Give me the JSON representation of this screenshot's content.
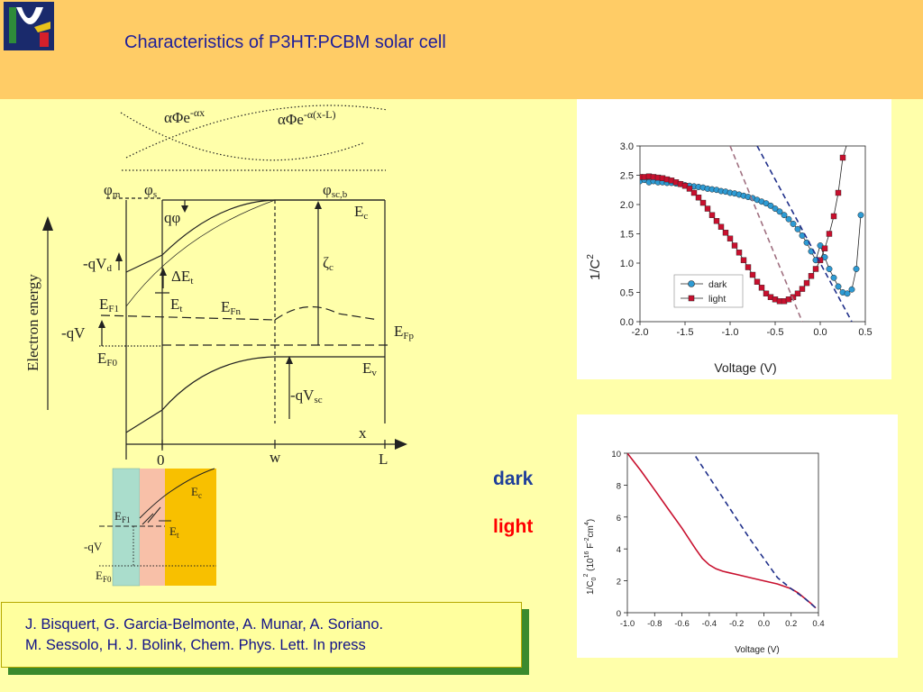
{
  "slide": {
    "title": "Characteristics of P3HT:PCBM solar cell",
    "colors": {
      "header_bg": "#FFCC66",
      "body_bg": "#FFFFAA",
      "title": "#1F1F9A"
    }
  },
  "band_diagram": {
    "axis_label": "Electron energy",
    "x_axis_label": "x",
    "generation_left": "αΦe",
    "generation_left_sup": "-αx",
    "generation_right": "αΦe",
    "generation_right_sup": "-α(x-L)",
    "phi_m": "φ",
    "phi_m_sub": "m",
    "phi_s": "φ",
    "phi_s_sub": "s",
    "phi_scb": "φ",
    "phi_scb_sub": "sc,b",
    "q_phi": "qφ",
    "Ec": "E",
    "Ec_sub": "c",
    "qVd": "-qV",
    "qVd_sub": "d",
    "dEt": "ΔE",
    "dEt_sub": "t",
    "zeta": "ζ",
    "zeta_sub": "c",
    "EF1": "E",
    "EF1_sub": "F1",
    "Et": "E",
    "Et_sub": "t",
    "EFn": "E",
    "EFn_sub": "Fn",
    "qV": "-qV",
    "EFp": "E",
    "EFp_sub": "Fp",
    "EF0": "E",
    "EF0_sub": "F0",
    "Ev": "E",
    "Ev_sub": "v",
    "qVsc": "-qV",
    "qVsc_sub": "sc",
    "tick_0": "0",
    "tick_w": "w",
    "tick_L": "L"
  },
  "inset_diagram": {
    "Ec": "E",
    "Ec_sub": "c",
    "EF1": "E",
    "EF1_sub": "F1",
    "Et": "E",
    "Et_sub": "t",
    "qV": "-qV",
    "EF0": "E",
    "EF0_sub": "F0",
    "layer_colors": [
      "#AADDCC",
      "#F8C0A8",
      "#F8C000"
    ]
  },
  "legend_labels": {
    "dark": "dark",
    "light": "light",
    "dark_color": "#1F3F9A",
    "light_color": "#FF0000"
  },
  "reference": {
    "line1": "J. Bisquert, G. Garcia-Belmonte, A. Munar, A. Soriano.",
    "line2": "M. Sessolo, H. J. Bolink, Chem. Phys. Lett. In press"
  },
  "chart_data": [
    {
      "type": "scatter",
      "title": "",
      "xlabel": "Voltage (V)",
      "ylabel": "1/C",
      "ylabel_sup": "2",
      "xlim": [
        -2.0,
        0.5
      ],
      "ylim": [
        0.0,
        3.0
      ],
      "xticks": [
        "-2.0",
        "-1.5",
        "-1.0",
        "-0.5",
        "0.0",
        "0.5"
      ],
      "yticks": [
        "0.0",
        "0.5",
        "1.0",
        "1.5",
        "2.0",
        "2.5",
        "3.0"
      ],
      "legend": "lower-center",
      "series": [
        {
          "name": "dark",
          "color": "#2E9BD4",
          "marker": "circle",
          "x": [
            -2.0,
            -1.95,
            -1.9,
            -1.85,
            -1.8,
            -1.75,
            -1.7,
            -1.65,
            -1.6,
            -1.55,
            -1.5,
            -1.45,
            -1.4,
            -1.35,
            -1.3,
            -1.25,
            -1.2,
            -1.15,
            -1.1,
            -1.05,
            -1.0,
            -0.95,
            -0.9,
            -0.85,
            -0.8,
            -0.75,
            -0.7,
            -0.65,
            -0.6,
            -0.55,
            -0.5,
            -0.45,
            -0.4,
            -0.35,
            -0.3,
            -0.25,
            -0.2,
            -0.15,
            -0.1,
            -0.05,
            0.0,
            0.05,
            0.1,
            0.15,
            0.2,
            0.25,
            0.3,
            0.35,
            0.4,
            0.45
          ],
          "y": [
            2.4,
            2.42,
            2.38,
            2.4,
            2.38,
            2.38,
            2.37,
            2.37,
            2.36,
            2.35,
            2.33,
            2.32,
            2.31,
            2.3,
            2.29,
            2.27,
            2.26,
            2.25,
            2.23,
            2.22,
            2.2,
            2.19,
            2.17,
            2.15,
            2.13,
            2.11,
            2.08,
            2.05,
            2.02,
            1.98,
            1.93,
            1.88,
            1.82,
            1.75,
            1.67,
            1.58,
            1.47,
            1.35,
            1.2,
            1.05,
            1.3,
            1.1,
            0.9,
            0.75,
            0.6,
            0.5,
            0.48,
            0.55,
            0.9,
            1.82
          ]
        },
        {
          "name": "light",
          "color": "#C8102E",
          "marker": "square",
          "x": [
            -2.0,
            -1.95,
            -1.9,
            -1.85,
            -1.8,
            -1.75,
            -1.7,
            -1.65,
            -1.6,
            -1.55,
            -1.5,
            -1.45,
            -1.4,
            -1.35,
            -1.3,
            -1.25,
            -1.2,
            -1.15,
            -1.1,
            -1.05,
            -1.0,
            -0.95,
            -0.9,
            -0.85,
            -0.8,
            -0.75,
            -0.7,
            -0.65,
            -0.6,
            -0.55,
            -0.5,
            -0.45,
            -0.4,
            -0.35,
            -0.3,
            -0.25,
            -0.2,
            -0.15,
            -0.1,
            -0.05,
            0.0,
            0.05,
            0.1,
            0.15,
            0.2,
            0.25,
            0.3
          ],
          "y": [
            2.47,
            2.47,
            2.48,
            2.47,
            2.46,
            2.45,
            2.43,
            2.41,
            2.38,
            2.35,
            2.32,
            2.27,
            2.2,
            2.12,
            2.03,
            1.93,
            1.82,
            1.72,
            1.62,
            1.52,
            1.42,
            1.3,
            1.18,
            1.05,
            0.93,
            0.8,
            0.68,
            0.58,
            0.48,
            0.42,
            0.38,
            0.35,
            0.35,
            0.38,
            0.42,
            0.48,
            0.56,
            0.66,
            0.78,
            0.9,
            1.05,
            1.25,
            1.5,
            1.8,
            2.2,
            2.8,
            3.05
          ]
        },
        {
          "name": "",
          "style": "dashed",
          "color": "#A07080",
          "x": [
            -1.0,
            -0.2
          ],
          "y": [
            3.0,
            0.0
          ]
        },
        {
          "name": "",
          "style": "dashed",
          "color": "#1F2F8A",
          "x": [
            -0.7,
            0.35
          ],
          "y": [
            3.0,
            0.0
          ]
        }
      ]
    },
    {
      "type": "line",
      "title": "",
      "xlabel": "Voltage (V)",
      "ylabel": "1/C",
      "ylabel_sub": "0",
      "ylabel_sup": "2",
      "ylabel_rest": " (10",
      "ylabel_sup2": "16",
      "ylabel_rest2": " F",
      "ylabel_sup3": "-2",
      "ylabel_rest3": "cm",
      "ylabel_sup4": "4",
      "ylabel_rest4": ")",
      "xlim": [
        -1.0,
        0.4
      ],
      "ylim": [
        0,
        10
      ],
      "xticks": [
        "-1.0",
        "-0.8",
        "-0.6",
        "-0.4",
        "-0.2",
        "0.0",
        "0.2",
        "0.4"
      ],
      "yticks": [
        "0",
        "2",
        "4",
        "6",
        "8",
        "10"
      ],
      "series": [
        {
          "name": "",
          "color": "#C8102E",
          "style": "solid",
          "x": [
            -1.0,
            -0.9,
            -0.8,
            -0.7,
            -0.6,
            -0.5,
            -0.45,
            -0.4,
            -0.35,
            -0.3,
            -0.25,
            -0.2,
            -0.1,
            0.0,
            0.1,
            0.2,
            0.25,
            0.3,
            0.35,
            0.38
          ],
          "y": [
            10.0,
            8.9,
            7.7,
            6.5,
            5.3,
            4.0,
            3.4,
            3.0,
            2.75,
            2.6,
            2.5,
            2.4,
            2.2,
            2.0,
            1.8,
            1.5,
            1.25,
            0.9,
            0.55,
            0.3
          ]
        },
        {
          "name": "",
          "color": "#1F2F8A",
          "style": "dashed",
          "x": [
            -0.5,
            -0.4,
            -0.3,
            -0.2,
            -0.1,
            0.0,
            0.1,
            0.2,
            0.3,
            0.38
          ],
          "y": [
            9.8,
            8.5,
            7.2,
            5.9,
            4.6,
            3.4,
            2.2,
            1.5,
            0.9,
            0.3
          ]
        }
      ]
    }
  ]
}
